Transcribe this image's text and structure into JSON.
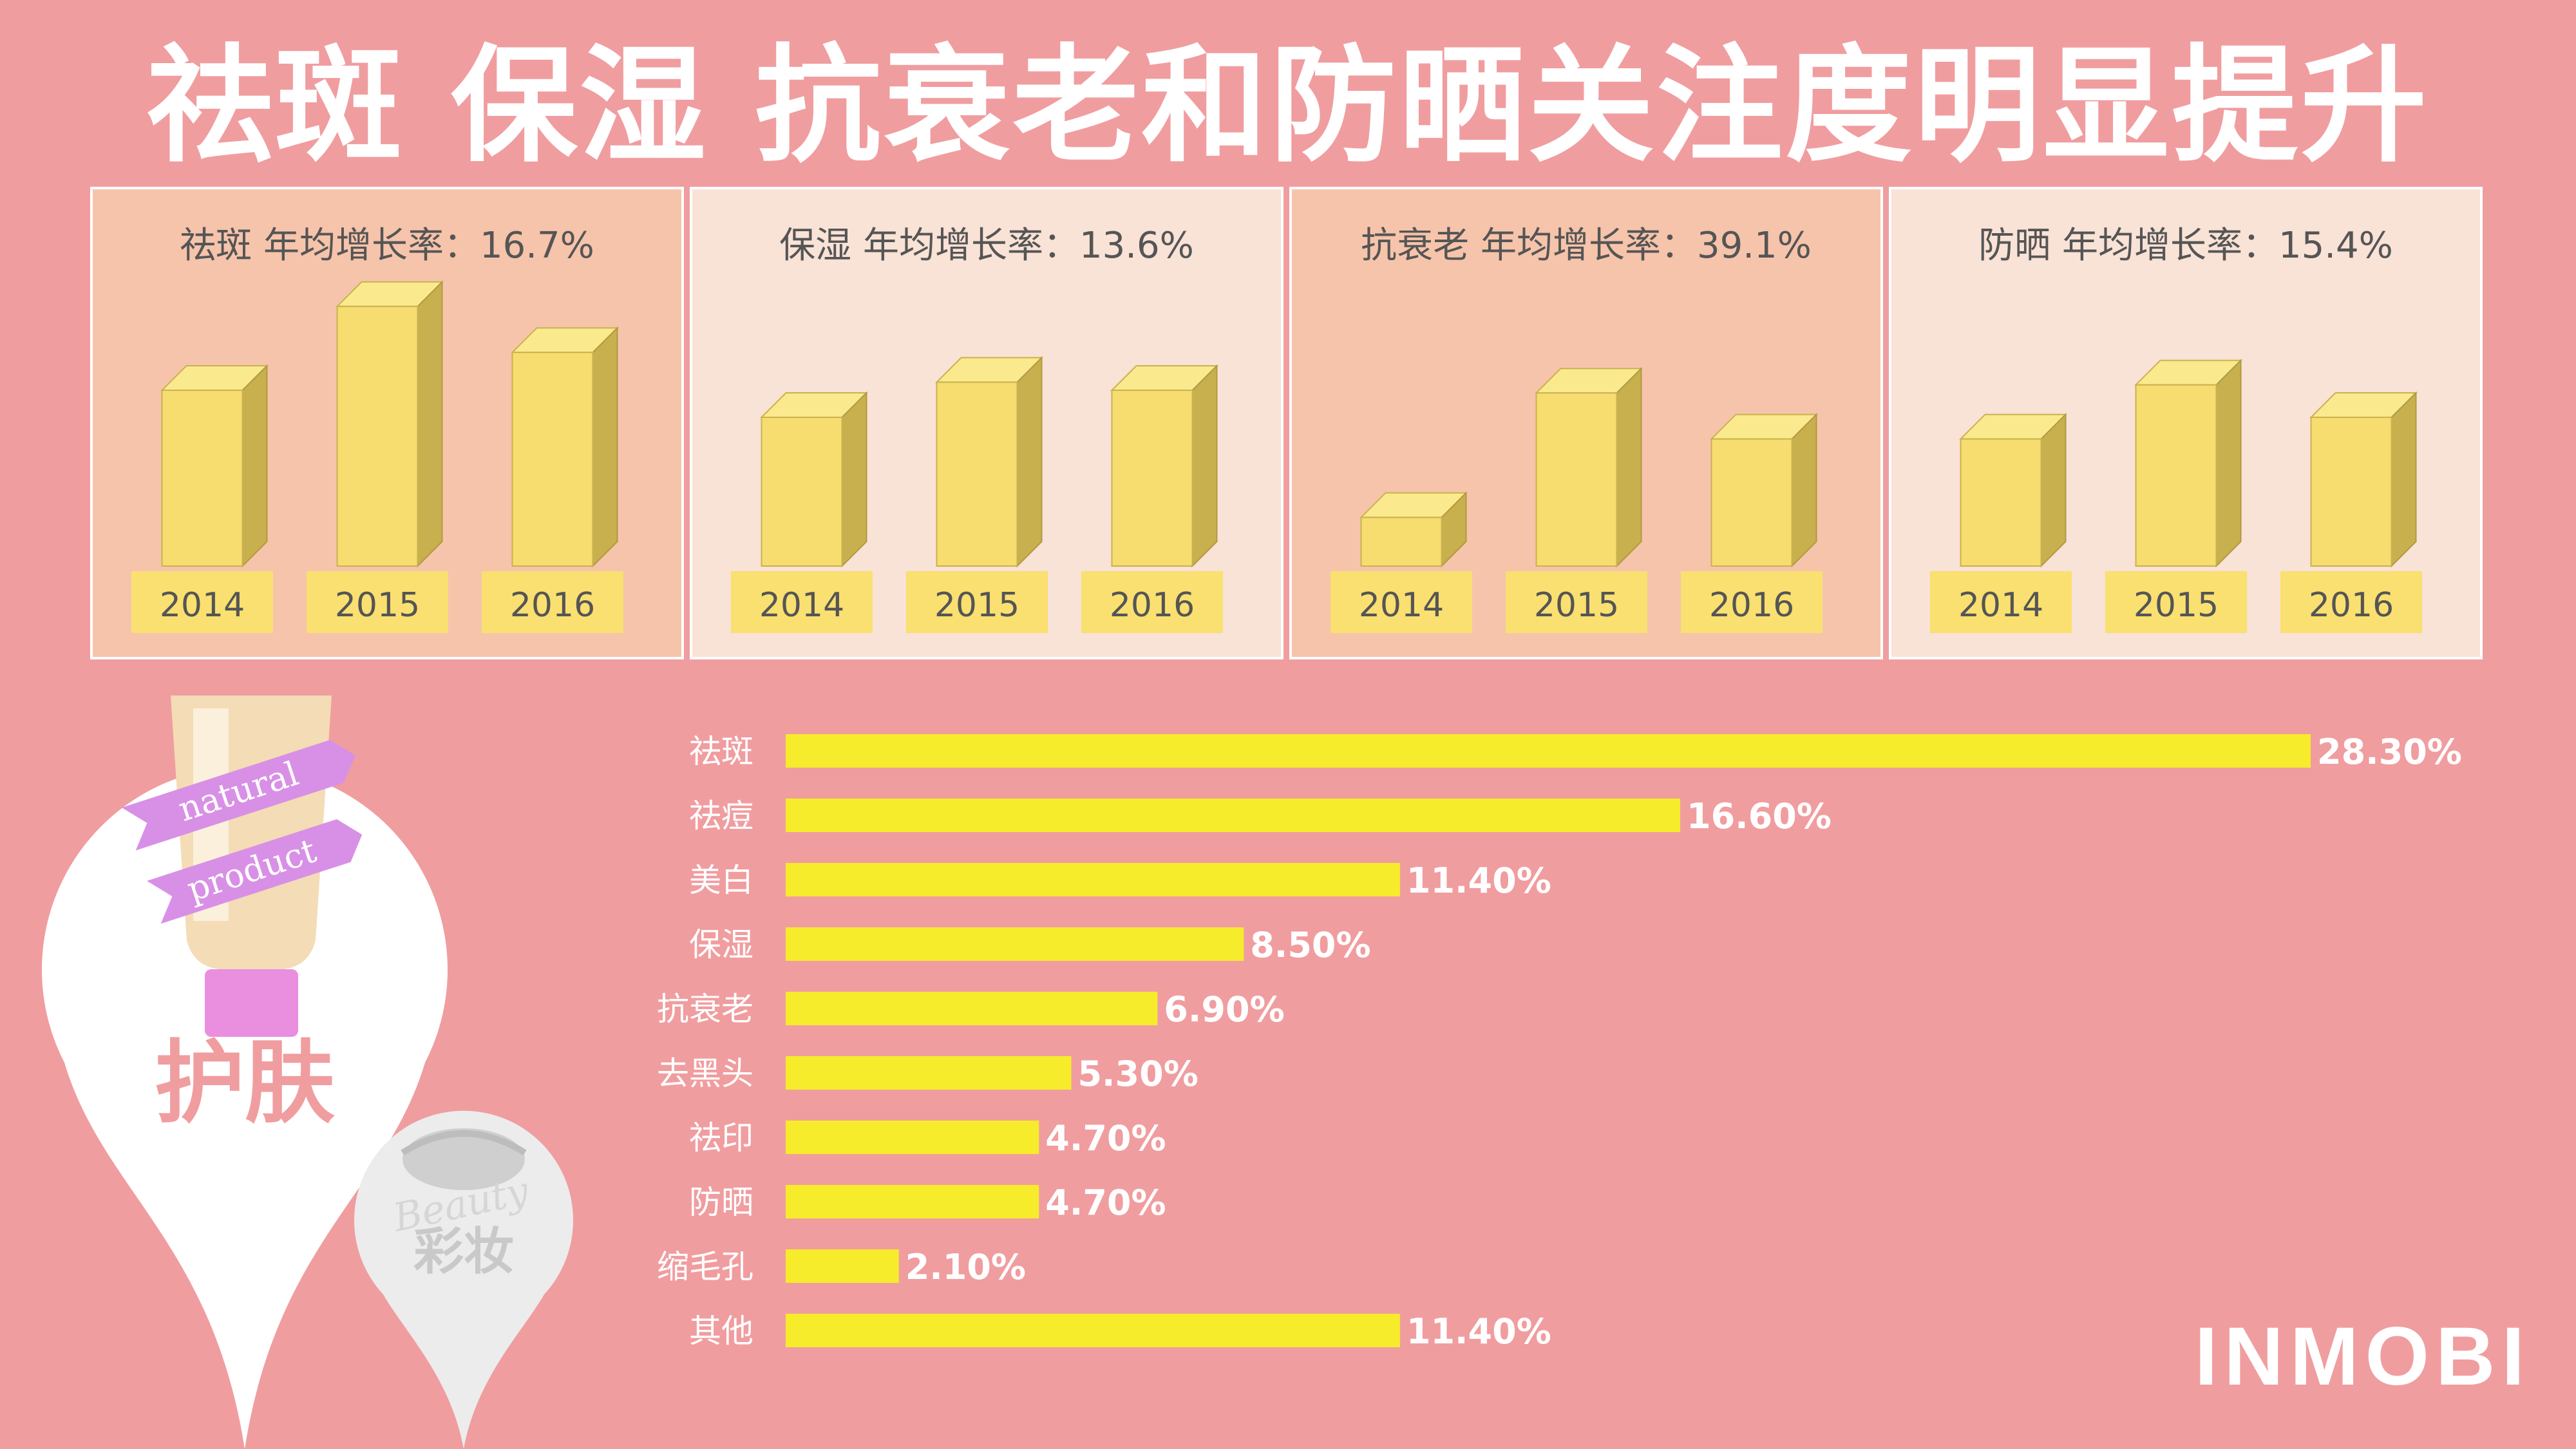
{
  "title": "祛斑 保湿 抗衰老和防晒关注度明显提升",
  "colors": {
    "background": "#f09da0",
    "panel_dark": "#f6c4ab",
    "panel_light": "#f9e2d6",
    "bar_front": "#f7dc6f",
    "bar_top": "#fbe98e",
    "bar_side": "#c8b04e",
    "year_label_bg": "#f9e070",
    "hbar": "#f7ec2b",
    "text_dark": "#555555",
    "white": "#ffffff"
  },
  "illustration": {
    "skincare_label": "护肤",
    "makeup_label": "彩妆",
    "ribbon1": "natural",
    "ribbon2": "product",
    "beauty_script": "Beauty"
  },
  "brand": "INMOBI",
  "chart_data": [
    {
      "type": "bar",
      "title": "祛斑 年均增长率：16.7%",
      "categories": [
        "2014",
        "2015",
        "2016"
      ],
      "values": [
        0.65,
        0.96,
        0.79
      ],
      "ylim": [
        0,
        1
      ],
      "note": "relative heights, no numeric axis shown"
    },
    {
      "type": "bar",
      "title": "保湿 年均增长率：13.6%",
      "categories": [
        "2014",
        "2015",
        "2016"
      ],
      "values": [
        0.55,
        0.68,
        0.65
      ],
      "ylim": [
        0,
        1
      ],
      "note": "relative heights, no numeric axis shown"
    },
    {
      "type": "bar",
      "title": "抗衰老 年均增长率：39.1%",
      "categories": [
        "2014",
        "2015",
        "2016"
      ],
      "values": [
        0.18,
        0.64,
        0.47
      ],
      "ylim": [
        0,
        1
      ],
      "note": "relative heights, no numeric axis shown"
    },
    {
      "type": "bar",
      "title": "防晒 年均增长率：15.4%",
      "categories": [
        "2014",
        "2015",
        "2016"
      ],
      "values": [
        0.47,
        0.67,
        0.55
      ],
      "ylim": [
        0,
        1
      ],
      "note": "relative heights, no numeric axis shown"
    },
    {
      "type": "bar",
      "orientation": "horizontal",
      "categories": [
        "祛斑",
        "祛痘",
        "美白",
        "保湿",
        "抗衰老",
        "去黑头",
        "祛印",
        "防晒",
        "缩毛孔",
        "其他"
      ],
      "values": [
        28.3,
        16.6,
        11.4,
        8.5,
        6.9,
        5.3,
        4.7,
        4.7,
        2.1,
        11.4
      ],
      "labels": [
        "28.30%",
        "16.60%",
        "11.40%",
        "8.50%",
        "6.90%",
        "5.30%",
        "4.70%",
        "4.70%",
        "2.10%",
        "11.40%"
      ],
      "xlim": [
        0,
        28.3
      ]
    }
  ]
}
